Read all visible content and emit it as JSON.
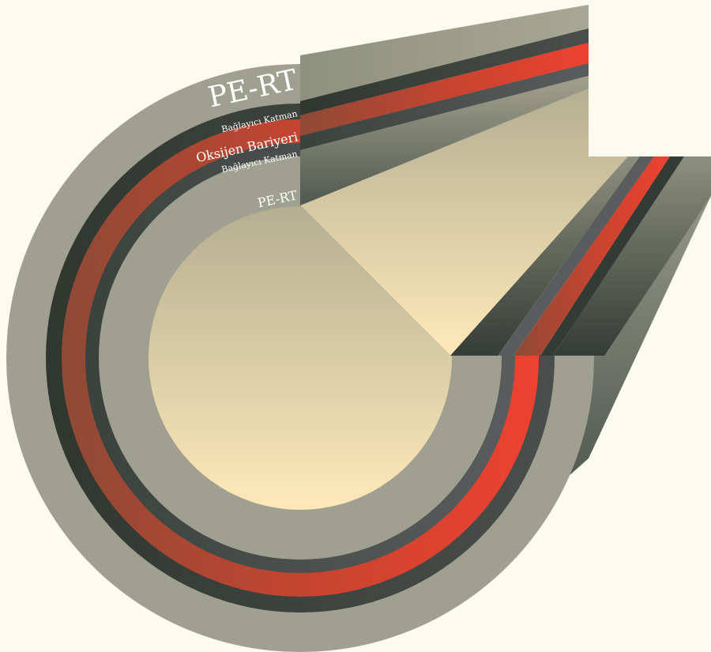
{
  "diagram": {
    "labels": {
      "outer_layer": "PE-RT",
      "adhesive_outer": "Bağlayıcı Katman",
      "oxygen_barrier": "Oksijen Bariyeri",
      "adhesive_inner": "Bağlayıcı Katman",
      "inner_layer": "PE-RT"
    },
    "layers": [
      {
        "name": "PE-RT (outer)",
        "color": "#9fa08f"
      },
      {
        "name": "Bağlayıcı Katman (outer)",
        "color": "#343b36"
      },
      {
        "name": "Oksijen Bariyeri",
        "color": "#e84030"
      },
      {
        "name": "Bağlayıcı Katman (inner)",
        "color": "#565859"
      },
      {
        "name": "PE-RT (inner)",
        "color": "#9fa08f"
      }
    ],
    "colors": {
      "background": "#fcfbef",
      "bore_top": "#b4ae92",
      "bore_bottom": "#ffe9b9"
    }
  }
}
